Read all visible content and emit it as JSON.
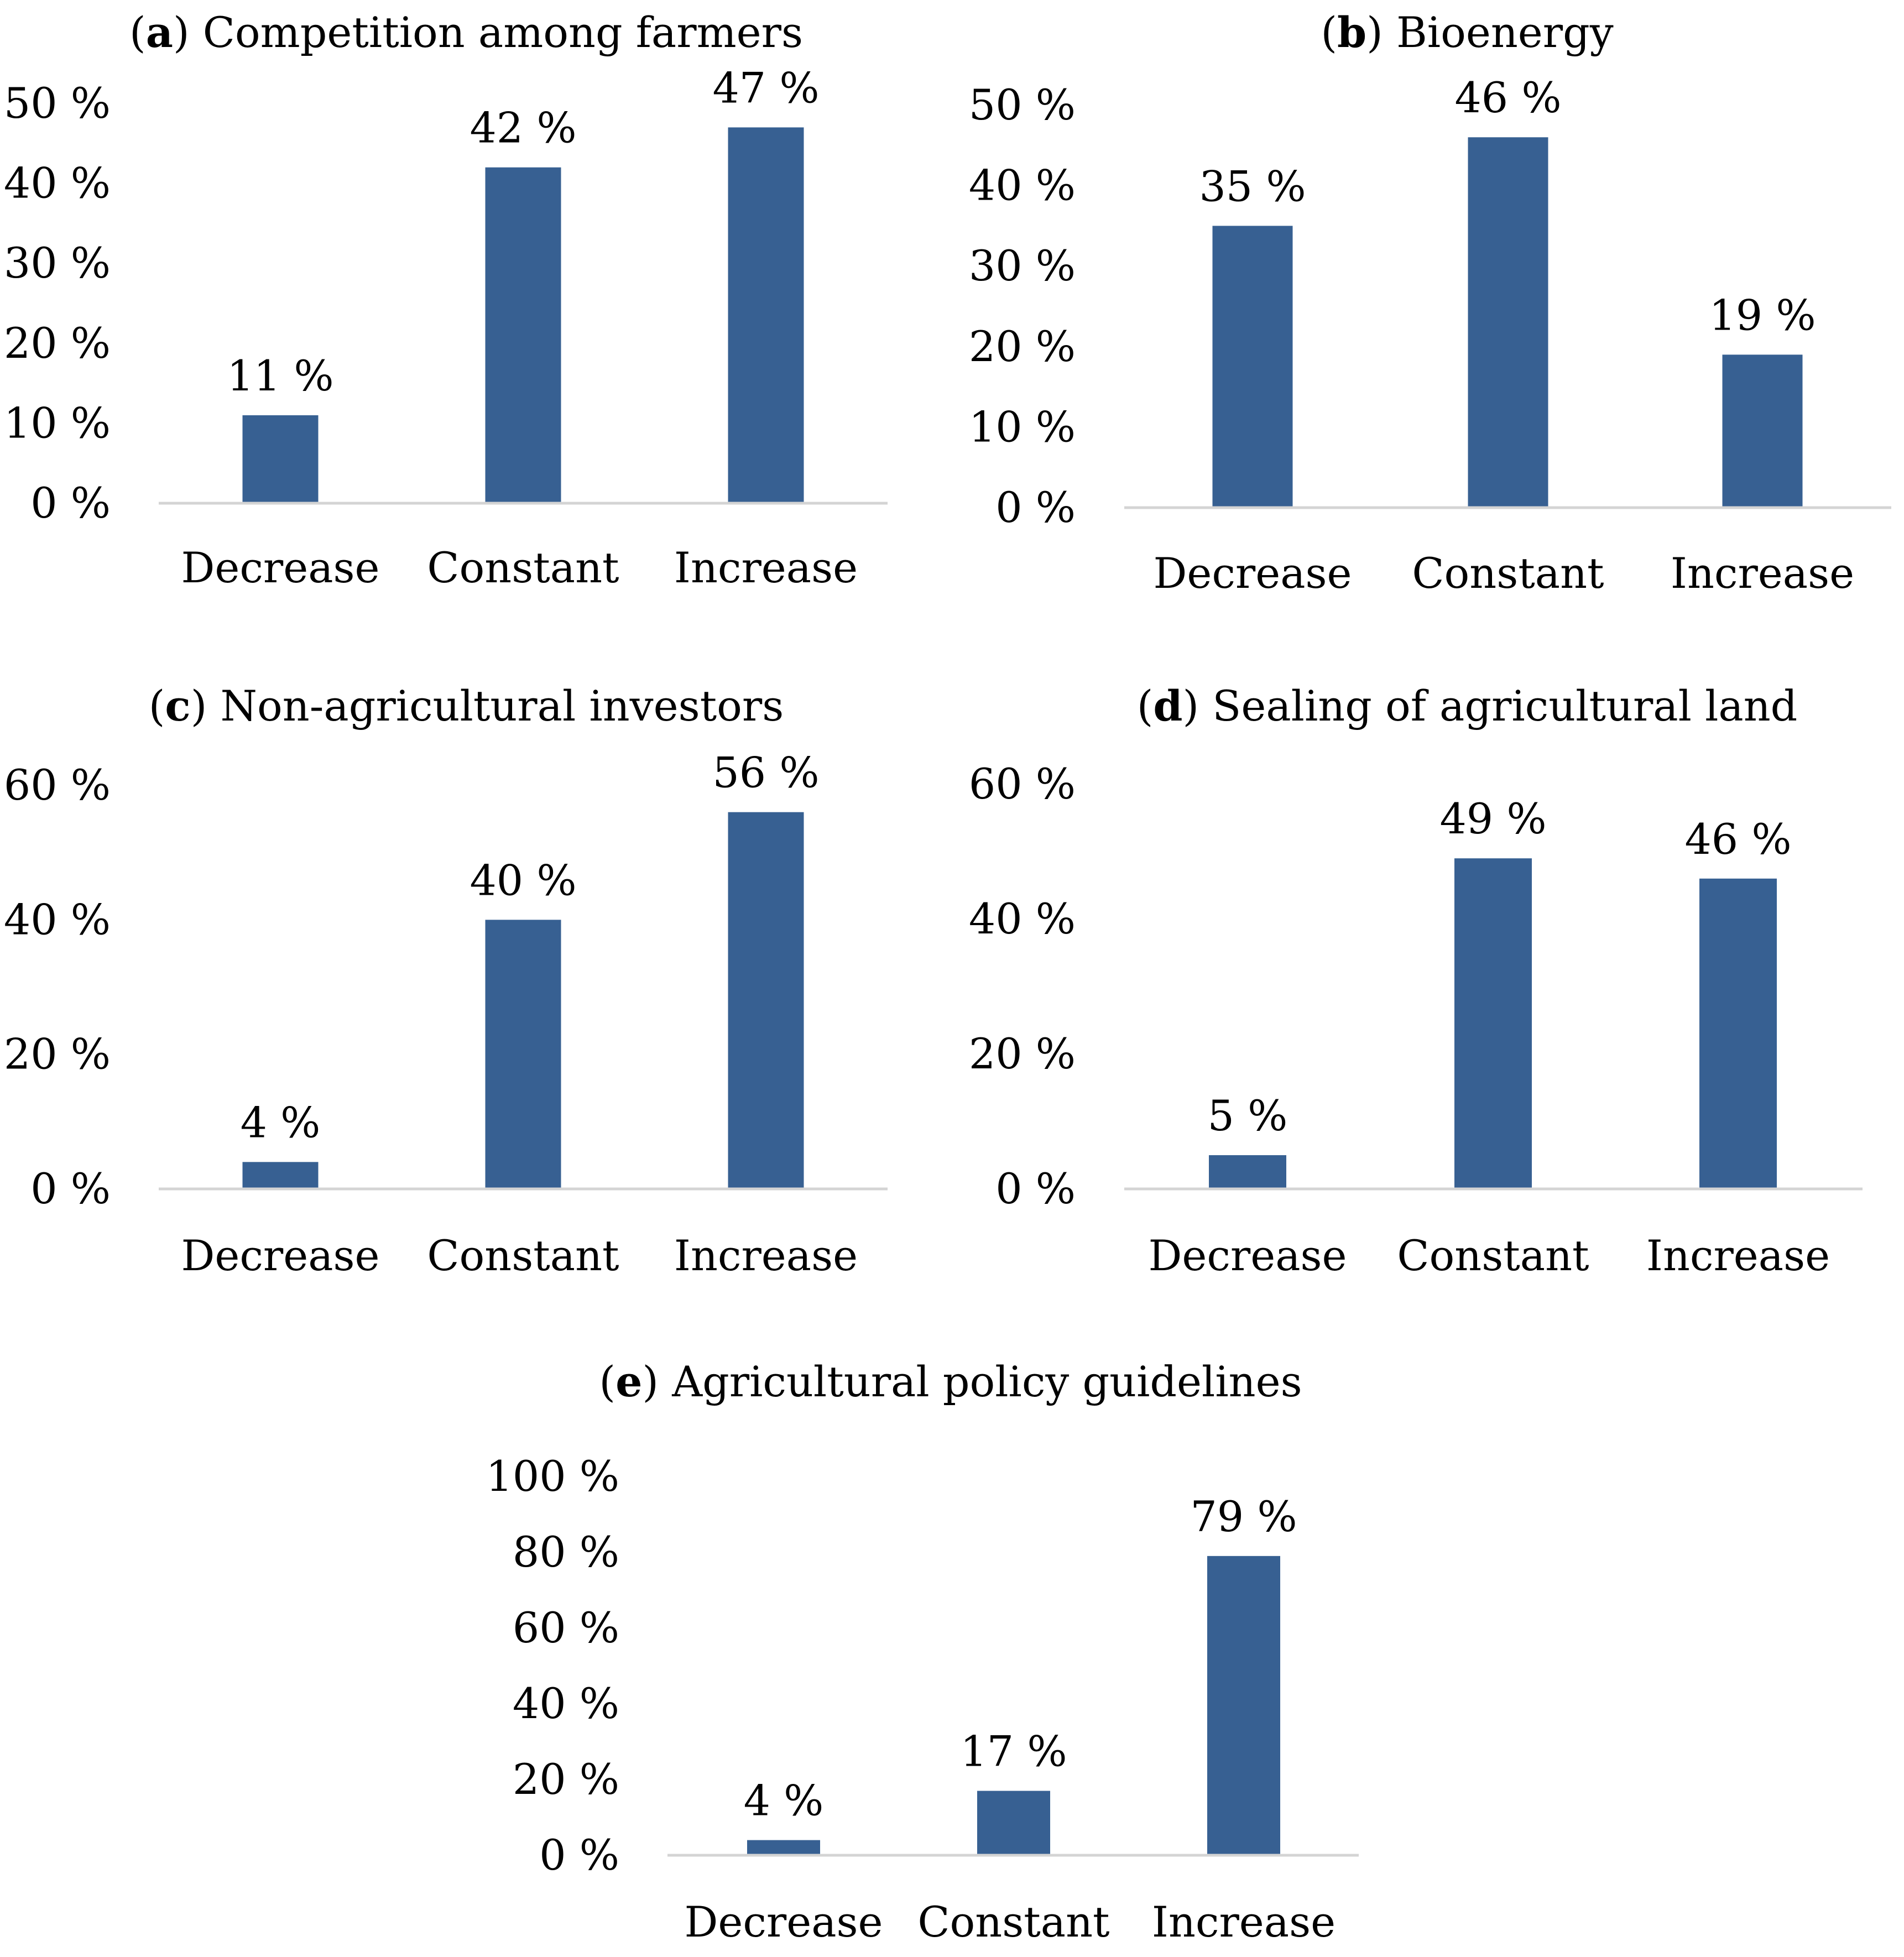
{
  "figure": {
    "bar_color": "#376092",
    "axis_color": "#d4d4d4",
    "text_color": "#000000"
  },
  "chart_data": [
    {
      "id": "a",
      "type": "bar",
      "title_letter": "a",
      "title_text": "Competition among farmers",
      "categories": [
        "Decrease",
        "Constant",
        "Increase"
      ],
      "values": [
        11,
        42,
        47
      ],
      "value_labels": [
        "11 %",
        "42 %",
        "47 %"
      ],
      "ylim": [
        0,
        50
      ],
      "yticks": [
        0,
        10,
        20,
        30,
        40,
        50
      ],
      "ytick_labels": [
        "0 %",
        "10 %",
        "20 %",
        "30 %",
        "40 %",
        "50 %"
      ],
      "xlabel": "",
      "ylabel": "",
      "grid": false
    },
    {
      "id": "b",
      "type": "bar",
      "title_letter": "b",
      "title_text": "Bioenergy",
      "categories": [
        "Decrease",
        "Constant",
        "Increase"
      ],
      "values": [
        35,
        46,
        19
      ],
      "value_labels": [
        "35 %",
        "46 %",
        "19 %"
      ],
      "ylim": [
        0,
        50
      ],
      "yticks": [
        0,
        10,
        20,
        30,
        40,
        50
      ],
      "ytick_labels": [
        "0 %",
        "10 %",
        "20 %",
        "30 %",
        "40 %",
        "50 %"
      ],
      "xlabel": "",
      "ylabel": "",
      "grid": false
    },
    {
      "id": "c",
      "type": "bar",
      "title_letter": "c",
      "title_text": "Non-agricultural investors",
      "categories": [
        "Decrease",
        "Constant",
        "Increase"
      ],
      "values": [
        4,
        40,
        56
      ],
      "value_labels": [
        "4 %",
        "40 %",
        "56 %"
      ],
      "ylim": [
        0,
        60
      ],
      "yticks": [
        0,
        20,
        40,
        60
      ],
      "ytick_labels": [
        "0 %",
        "20 %",
        "40 %",
        "60 %"
      ],
      "xlabel": "",
      "ylabel": "",
      "grid": false
    },
    {
      "id": "d",
      "type": "bar",
      "title_letter": "d",
      "title_text": "Sealing of agricultural land",
      "categories": [
        "Decrease",
        "Constant",
        "Increase"
      ],
      "values": [
        5,
        49,
        46
      ],
      "value_labels": [
        "5 %",
        "49 %",
        "46 %"
      ],
      "ylim": [
        0,
        60
      ],
      "yticks": [
        0,
        20,
        40,
        60
      ],
      "ytick_labels": [
        "0 %",
        "20 %",
        "40 %",
        "60 %"
      ],
      "xlabel": "",
      "ylabel": "",
      "grid": false
    },
    {
      "id": "e",
      "type": "bar",
      "title_letter": "e",
      "title_text": "Agricultural policy guidelines",
      "categories": [
        "Decrease",
        "Constant",
        "Increase"
      ],
      "values": [
        4,
        17,
        79
      ],
      "value_labels": [
        "4 %",
        "17 %",
        "79 %"
      ],
      "ylim": [
        0,
        100
      ],
      "yticks": [
        0,
        20,
        40,
        60,
        80,
        100
      ],
      "ytick_labels": [
        "0 %",
        "20 %",
        "40 %",
        "60 %",
        "80 %",
        "100 %"
      ],
      "xlabel": "",
      "ylabel": "",
      "grid": false
    }
  ]
}
